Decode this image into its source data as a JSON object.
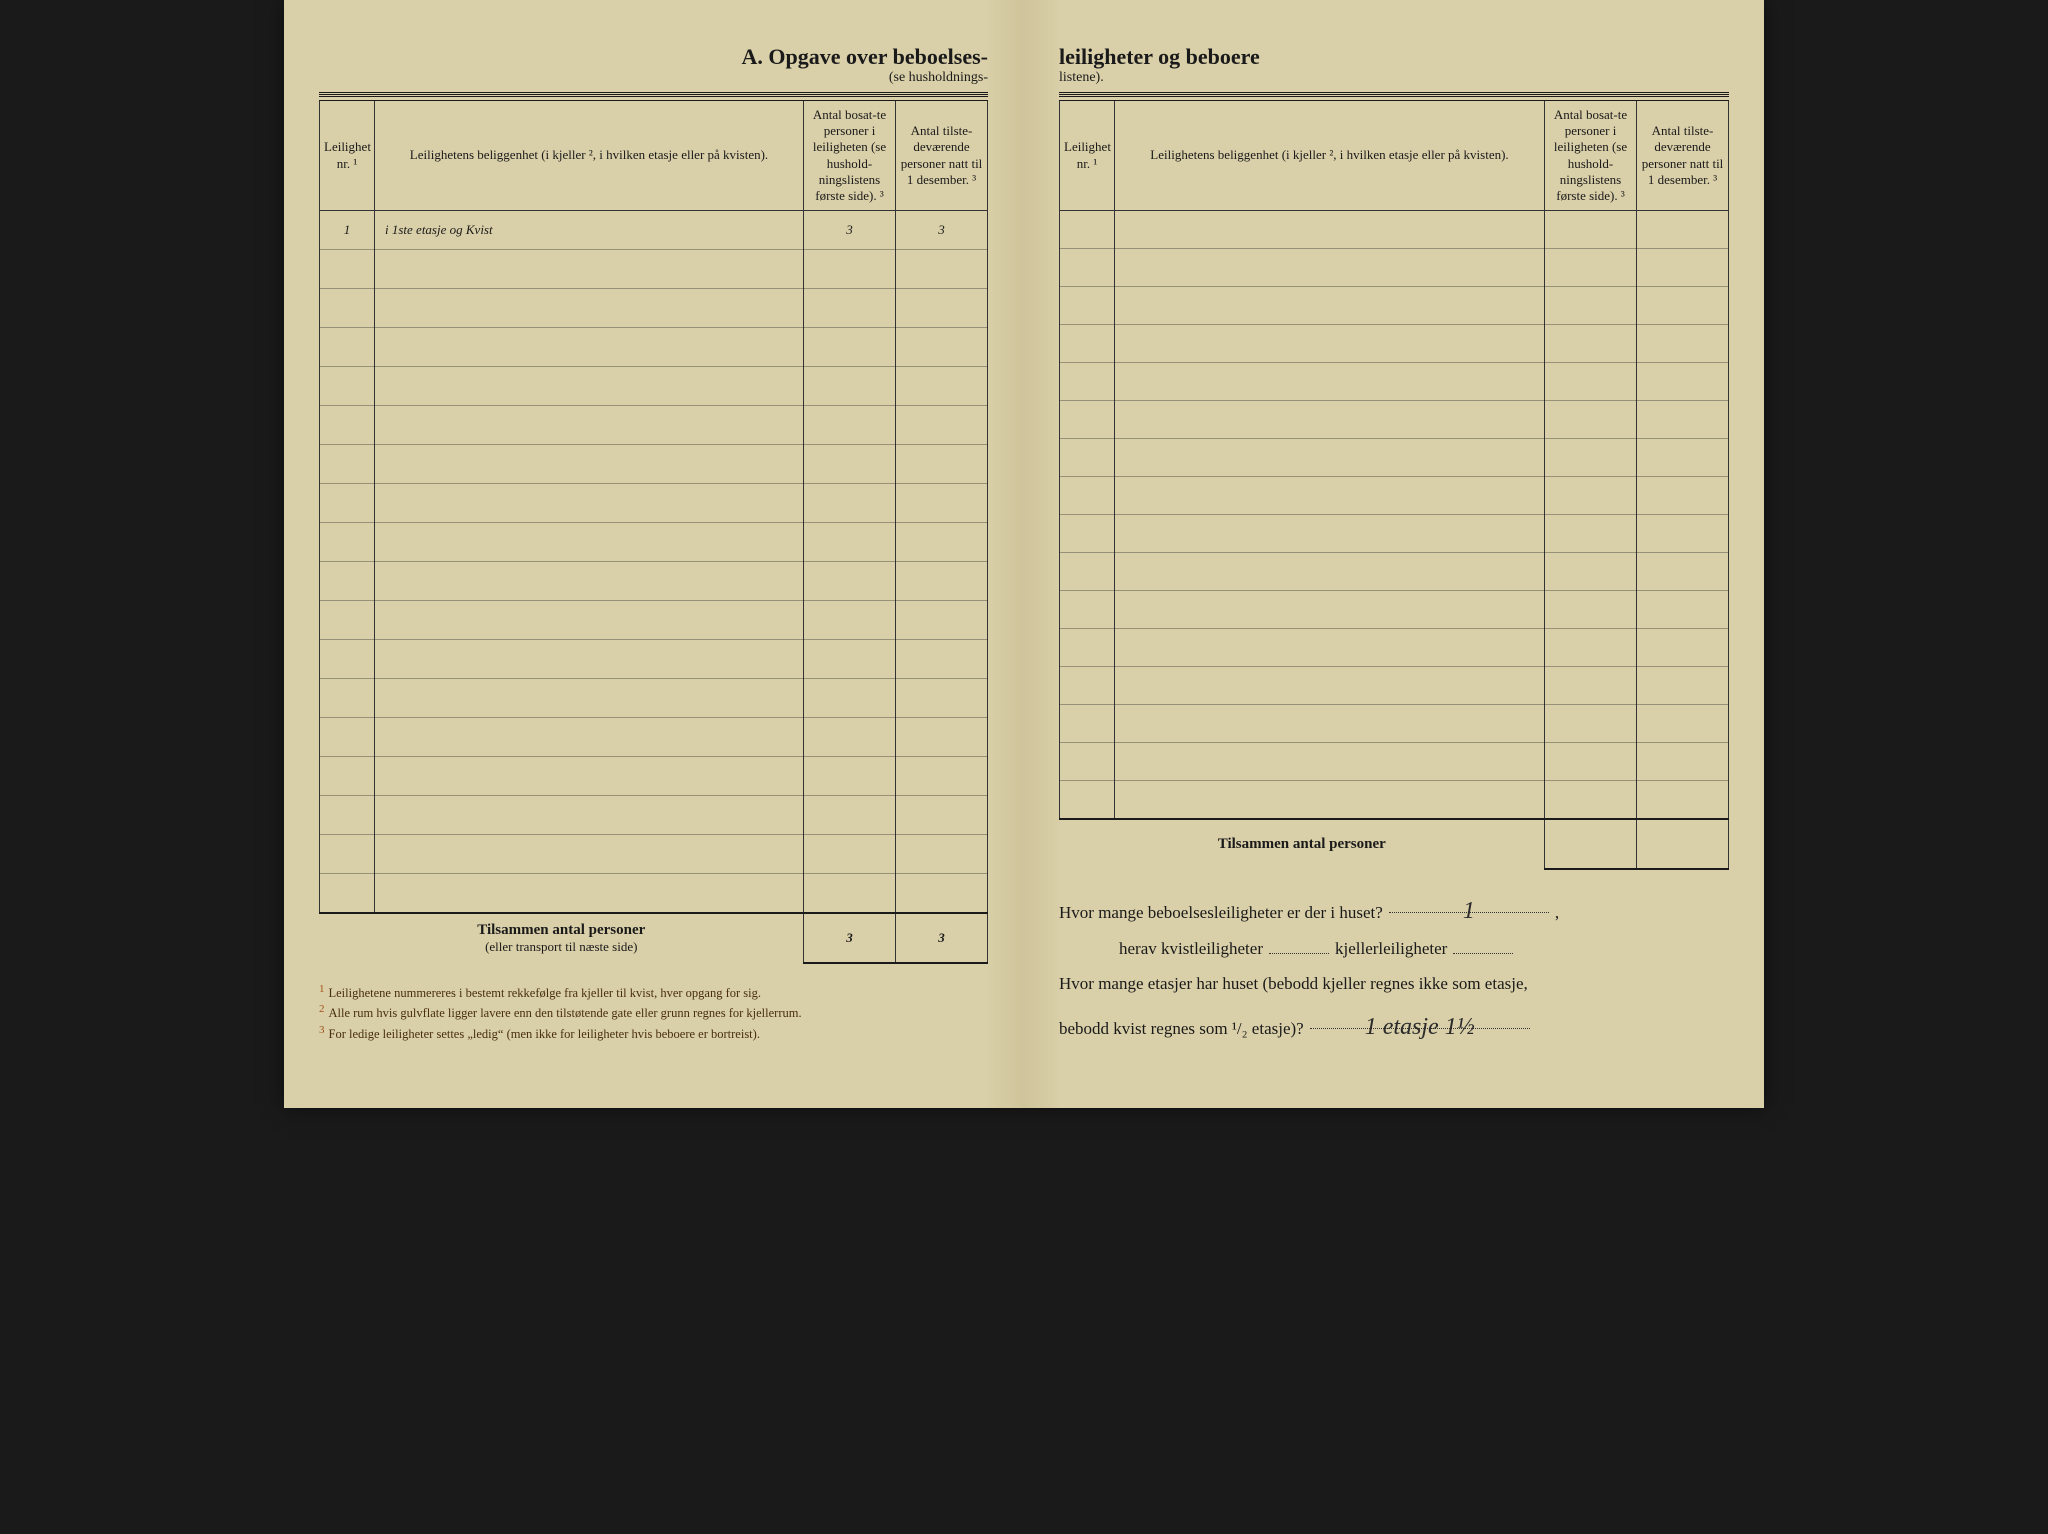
{
  "title_left": "A.  Opgave over beboelses-",
  "subtitle_left": "(se husholdnings-",
  "title_right": "leiligheter og beboere",
  "subtitle_right": "listene).",
  "columns": {
    "nr": "Leilighet nr. ¹",
    "loc": "Leilighetens beliggenhet (i kjeller ², i hvilken etasje eller på kvisten).",
    "n1": "Antal bosat-te personer i leiligheten (se hushold-ningslistens første side). ³",
    "n2": "Antal tilste-deværende personer natt til 1 desember. ³"
  },
  "left_rows": [
    {
      "nr": "1",
      "loc": "i 1ste etasje og Kvist",
      "n1": "3",
      "n2": "3"
    }
  ],
  "left_blank_rows": 17,
  "right_blank_rows": 16,
  "totals": {
    "label": "Tilsammen antal personer",
    "sub_left": "(eller transport til næste side)",
    "n1": "3",
    "n2": "3"
  },
  "footnotes": [
    "Leilighetene nummereres i bestemt rekkefølge fra kjeller til kvist, hver opgang for sig.",
    "Alle rum hvis gulvflate ligger lavere enn den tilstøtende gate eller grunn regnes for kjellerrum.",
    "For ledige leiligheter settes „ledig“ (men ikke for leiligheter hvis beboere er bortreist)."
  ],
  "qa": {
    "q1_pre": "Hvor mange beboelsesleiligheter er der i huset?",
    "q1_ans": "1",
    "q2_a": "herav kvistleiligheter",
    "q2_b": "kjellerleiligheter",
    "q3_line1": "Hvor mange etasjer har huset (bebodd kjeller regnes ikke som etasje,",
    "q3_line2_pre": "bebodd kvist regnes som ¹/₂ etasje)?",
    "q3_ans": "1 etasje   1½"
  }
}
